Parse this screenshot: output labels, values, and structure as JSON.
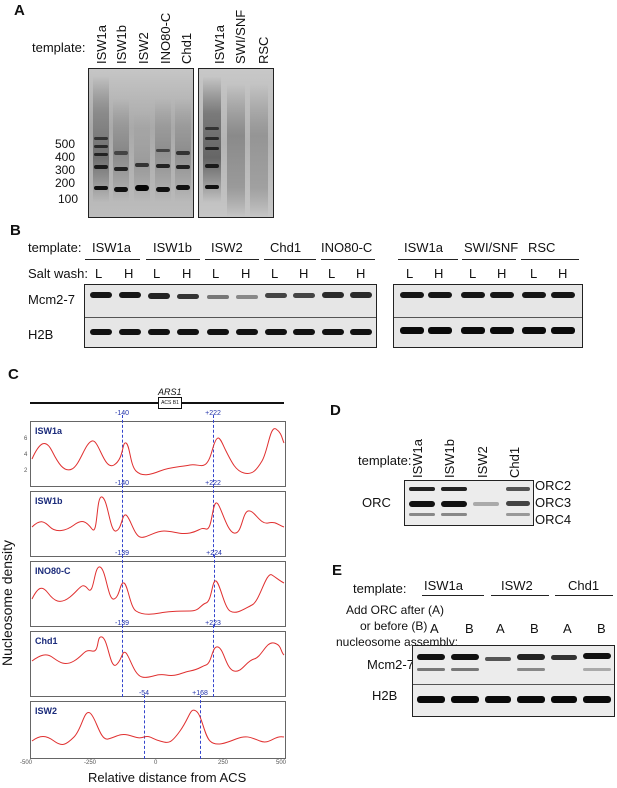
{
  "panelA": {
    "label": "A",
    "template_label": "template:",
    "lanes_left": [
      "ISW1a",
      "ISW1b",
      "ISW2",
      "INO80-C",
      "Chd1"
    ],
    "lanes_right": [
      "ISW1a",
      "SWI/SNF",
      "RSC"
    ],
    "markers": [
      "500",
      "400",
      "300",
      "200",
      "100"
    ]
  },
  "panelB": {
    "label": "B",
    "template_label": "template:",
    "groups_left": [
      "ISW1a",
      "ISW1b",
      "ISW2",
      "Chd1",
      "INO80-C"
    ],
    "groups_right": [
      "ISW1a",
      "SWI/SNF",
      "RSC"
    ],
    "salt_label": "Salt wash:",
    "L": "L",
    "H": "H",
    "row1": "Mcm2-7",
    "row2": "H2B"
  },
  "panelC": {
    "label": "C",
    "locus": "ARS1",
    "acs_box": "ACS B1 B2 B3",
    "ylabel": "Nucleosome density",
    "xlabel": "Relative distance from ACS",
    "xticks": [
      "-500",
      "-250",
      "0",
      "250",
      "500"
    ],
    "yticks": [
      "6",
      "4",
      "2"
    ],
    "traces": [
      {
        "name": "ISW1a",
        "pos1": "-140",
        "pos2": "+222"
      },
      {
        "name": "ISW1b",
        "pos1": "-140",
        "pos2": "+222"
      },
      {
        "name": "INO80-C",
        "pos1": "-139",
        "pos2": "+224"
      },
      {
        "name": "Chd1",
        "pos1": "-139",
        "pos2": "+223"
      },
      {
        "name": "ISW2",
        "pos1": "-54",
        "pos2": "+168"
      }
    ]
  },
  "panelD": {
    "label": "D",
    "template_label": "template:",
    "lanes": [
      "ISW1a",
      "ISW1b",
      "ISW2",
      "Chd1"
    ],
    "left_label": "ORC",
    "right_labels": [
      "ORC2",
      "ORC3",
      "ORC4"
    ]
  },
  "panelE": {
    "label": "E",
    "template_label": "template:",
    "groups": [
      "ISW1a",
      "ISW2",
      "Chd1"
    ],
    "condition_lines": [
      "Add ORC after (A)",
      "or before (B)",
      "nucleosome assembly:"
    ],
    "A": "A",
    "B": "B",
    "row1": "Mcm2-7",
    "row2": "H2B"
  }
}
